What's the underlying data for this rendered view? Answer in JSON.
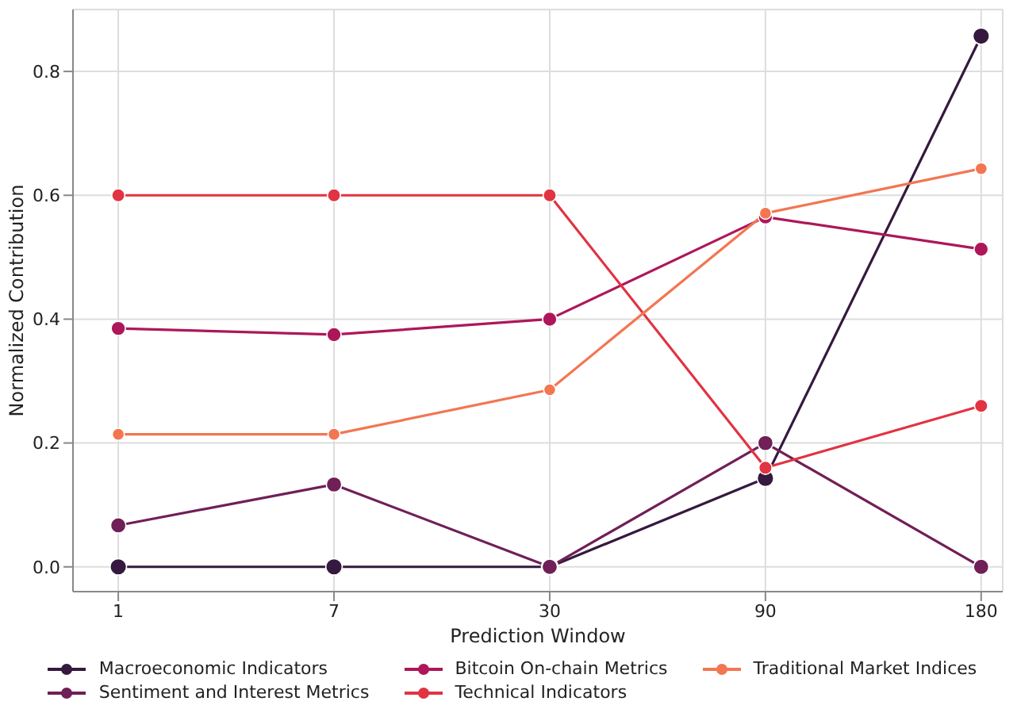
{
  "chart_data": {
    "type": "line",
    "xlabel": "Prediction Window",
    "ylabel": "Normalized Contribution",
    "categories": [
      "1",
      "7",
      "30",
      "90",
      "180"
    ],
    "series": [
      {
        "name": "Macroeconomic Indicators",
        "color": "#35193e",
        "values": [
          0,
          0,
          0,
          0.143,
          0.857
        ]
      },
      {
        "name": "Sentiment and Interest Metrics",
        "color": "#701f57",
        "values": [
          0.067,
          0.133,
          0,
          0.2,
          0
        ]
      },
      {
        "name": "Bitcoin On-chain Metrics",
        "color": "#ad1759",
        "values": [
          0.385,
          0.375,
          0.4,
          0.565,
          0.513
        ]
      },
      {
        "name": "Technical Indicators",
        "color": "#e13342",
        "values": [
          0.6,
          0.6,
          0.6,
          0.16,
          0.26
        ]
      },
      {
        "name": "Traditional Market Indices",
        "color": "#f37651",
        "values": [
          0.214,
          0.214,
          0.286,
          0.571,
          0.643
        ]
      }
    ],
    "ylim": [
      -0.04,
      0.9
    ],
    "yticks": [
      {
        "value": 0,
        "label": "0.0"
      },
      0.2,
      0.4,
      0.6,
      0.8
    ],
    "grid": true,
    "legend": "bottom",
    "marker": "circle",
    "line_style": "solid"
  }
}
